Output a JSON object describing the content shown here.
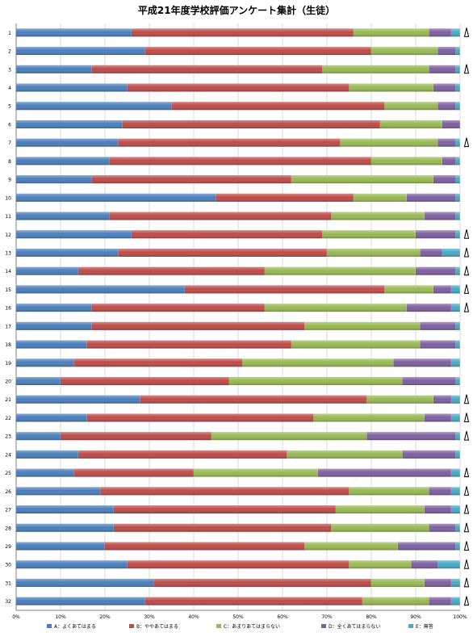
{
  "chart_data": {
    "type": "bar",
    "orientation": "horizontal",
    "stacked": "percent",
    "title": "平成21年度学校評価アンケート集計（生徒）",
    "xlabel": "",
    "ylabel": "",
    "xlim": [
      0,
      100
    ],
    "x_ticks": [
      "0%",
      "10%",
      "20%",
      "30%",
      "40%",
      "50%",
      "60%",
      "70%",
      "80%",
      "90%",
      "100%"
    ],
    "grid": true,
    "legend_position": "bottom",
    "categories": [
      "1",
      "2",
      "3",
      "4",
      "5",
      "6",
      "7",
      "8",
      "9",
      "10",
      "11",
      "12",
      "13",
      "14",
      "15",
      "16",
      "17",
      "18",
      "19",
      "20",
      "21",
      "22",
      "23",
      "24",
      "25",
      "26",
      "27",
      "28",
      "29",
      "30",
      "31",
      "32"
    ],
    "series": [
      {
        "name": "A：よくあてはまる",
        "color": "#4a7ebb",
        "values": [
          26,
          29,
          17,
          25,
          35,
          24,
          23,
          21,
          17,
          45,
          21,
          26,
          23,
          14,
          38,
          17,
          17,
          16,
          13,
          10,
          28,
          16,
          10,
          14,
          13,
          19,
          22,
          22,
          20,
          25,
          31,
          29
        ]
      },
      {
        "name": "B：ややあてはまる",
        "color": "#be4b48",
        "values": [
          50,
          51,
          52,
          50,
          48,
          58,
          50,
          59,
          45,
          31,
          50,
          43,
          47,
          42,
          45,
          39,
          48,
          46,
          38,
          38,
          51,
          51,
          34,
          47,
          27,
          56,
          50,
          49,
          45,
          50,
          49,
          49
        ]
      },
      {
        "name": "C：あまりあてはまらない",
        "color": "#98b954",
        "values": [
          17,
          15,
          24,
          19,
          12,
          14,
          22,
          16,
          32,
          12,
          21,
          21,
          21,
          34,
          11,
          32,
          26,
          29,
          34,
          39,
          15,
          25,
          35,
          26,
          28,
          18,
          20,
          22,
          21,
          14,
          12,
          15
        ]
      },
      {
        "name": "D：全くあてはまらない",
        "color": "#7d60a0",
        "values": [
          5,
          4,
          6,
          5,
          4,
          4,
          4,
          3,
          5,
          11,
          7,
          9,
          5,
          9,
          4,
          10,
          8,
          8,
          13,
          12,
          4,
          6,
          20,
          12,
          30,
          5,
          6,
          6,
          13,
          6,
          6,
          5
        ]
      },
      {
        "name": "E：無答",
        "color": "#46aac5",
        "values": [
          2,
          1,
          1,
          1,
          1,
          0,
          1,
          1,
          1,
          1,
          1,
          1,
          4,
          1,
          2,
          2,
          1,
          1,
          2,
          1,
          2,
          2,
          1,
          1,
          2,
          2,
          2,
          1,
          1,
          5,
          2,
          2
        ]
      }
    ],
    "side_marks": [
      true,
      false,
      true,
      false,
      false,
      false,
      true,
      false,
      false,
      false,
      false,
      true,
      true,
      true,
      true,
      true,
      false,
      false,
      false,
      false,
      true,
      true,
      true,
      false,
      true,
      true,
      true,
      true,
      true,
      true,
      true,
      true
    ]
  }
}
